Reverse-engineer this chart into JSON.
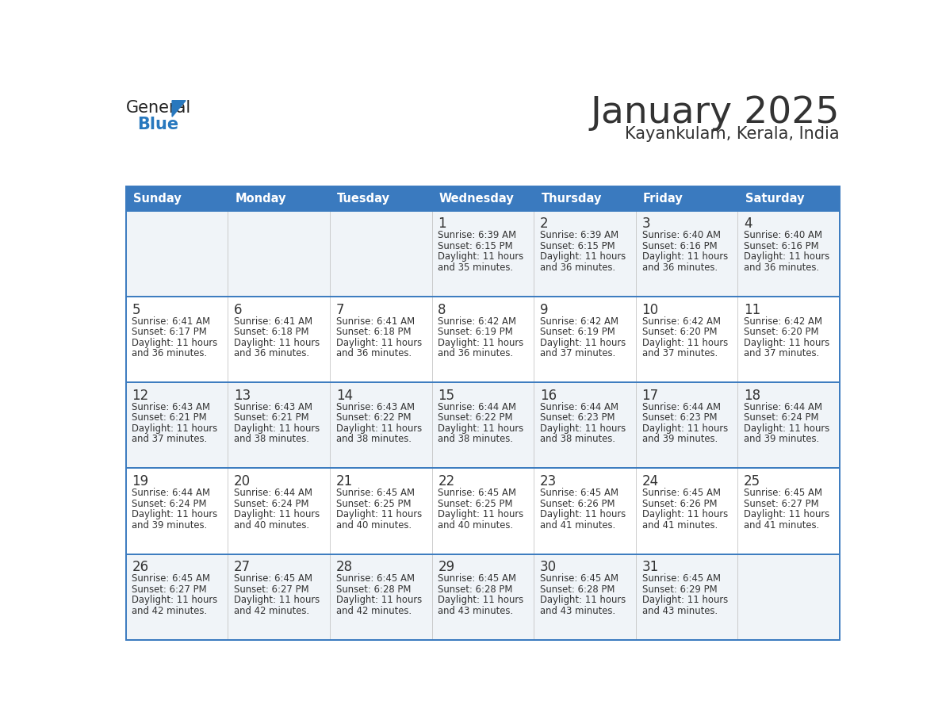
{
  "title": "January 2025",
  "subtitle": "Kayankulam, Kerala, India",
  "days_of_week": [
    "Sunday",
    "Monday",
    "Tuesday",
    "Wednesday",
    "Thursday",
    "Friday",
    "Saturday"
  ],
  "header_bg": "#3a7abf",
  "header_text_color": "#ffffff",
  "cell_bg_odd": "#f0f4f8",
  "cell_bg_even": "#ffffff",
  "row_line_color": "#3a7abf",
  "text_color": "#333333",
  "calendar_data": [
    [
      null,
      null,
      null,
      {
        "day": 1,
        "sunrise": "6:39 AM",
        "sunset": "6:15 PM",
        "daylight": "11 hours",
        "daylight2": "and 35 minutes."
      },
      {
        "day": 2,
        "sunrise": "6:39 AM",
        "sunset": "6:15 PM",
        "daylight": "11 hours",
        "daylight2": "and 36 minutes."
      },
      {
        "day": 3,
        "sunrise": "6:40 AM",
        "sunset": "6:16 PM",
        "daylight": "11 hours",
        "daylight2": "and 36 minutes."
      },
      {
        "day": 4,
        "sunrise": "6:40 AM",
        "sunset": "6:16 PM",
        "daylight": "11 hours",
        "daylight2": "and 36 minutes."
      }
    ],
    [
      {
        "day": 5,
        "sunrise": "6:41 AM",
        "sunset": "6:17 PM",
        "daylight": "11 hours",
        "daylight2": "and 36 minutes."
      },
      {
        "day": 6,
        "sunrise": "6:41 AM",
        "sunset": "6:18 PM",
        "daylight": "11 hours",
        "daylight2": "and 36 minutes."
      },
      {
        "day": 7,
        "sunrise": "6:41 AM",
        "sunset": "6:18 PM",
        "daylight": "11 hours",
        "daylight2": "and 36 minutes."
      },
      {
        "day": 8,
        "sunrise": "6:42 AM",
        "sunset": "6:19 PM",
        "daylight": "11 hours",
        "daylight2": "and 36 minutes."
      },
      {
        "day": 9,
        "sunrise": "6:42 AM",
        "sunset": "6:19 PM",
        "daylight": "11 hours",
        "daylight2": "and 37 minutes."
      },
      {
        "day": 10,
        "sunrise": "6:42 AM",
        "sunset": "6:20 PM",
        "daylight": "11 hours",
        "daylight2": "and 37 minutes."
      },
      {
        "day": 11,
        "sunrise": "6:42 AM",
        "sunset": "6:20 PM",
        "daylight": "11 hours",
        "daylight2": "and 37 minutes."
      }
    ],
    [
      {
        "day": 12,
        "sunrise": "6:43 AM",
        "sunset": "6:21 PM",
        "daylight": "11 hours",
        "daylight2": "and 37 minutes."
      },
      {
        "day": 13,
        "sunrise": "6:43 AM",
        "sunset": "6:21 PM",
        "daylight": "11 hours",
        "daylight2": "and 38 minutes."
      },
      {
        "day": 14,
        "sunrise": "6:43 AM",
        "sunset": "6:22 PM",
        "daylight": "11 hours",
        "daylight2": "and 38 minutes."
      },
      {
        "day": 15,
        "sunrise": "6:44 AM",
        "sunset": "6:22 PM",
        "daylight": "11 hours",
        "daylight2": "and 38 minutes."
      },
      {
        "day": 16,
        "sunrise": "6:44 AM",
        "sunset": "6:23 PM",
        "daylight": "11 hours",
        "daylight2": "and 38 minutes."
      },
      {
        "day": 17,
        "sunrise": "6:44 AM",
        "sunset": "6:23 PM",
        "daylight": "11 hours",
        "daylight2": "and 39 minutes."
      },
      {
        "day": 18,
        "sunrise": "6:44 AM",
        "sunset": "6:24 PM",
        "daylight": "11 hours",
        "daylight2": "and 39 minutes."
      }
    ],
    [
      {
        "day": 19,
        "sunrise": "6:44 AM",
        "sunset": "6:24 PM",
        "daylight": "11 hours",
        "daylight2": "and 39 minutes."
      },
      {
        "day": 20,
        "sunrise": "6:44 AM",
        "sunset": "6:24 PM",
        "daylight": "11 hours",
        "daylight2": "and 40 minutes."
      },
      {
        "day": 21,
        "sunrise": "6:45 AM",
        "sunset": "6:25 PM",
        "daylight": "11 hours",
        "daylight2": "and 40 minutes."
      },
      {
        "day": 22,
        "sunrise": "6:45 AM",
        "sunset": "6:25 PM",
        "daylight": "11 hours",
        "daylight2": "and 40 minutes."
      },
      {
        "day": 23,
        "sunrise": "6:45 AM",
        "sunset": "6:26 PM",
        "daylight": "11 hours",
        "daylight2": "and 41 minutes."
      },
      {
        "day": 24,
        "sunrise": "6:45 AM",
        "sunset": "6:26 PM",
        "daylight": "11 hours",
        "daylight2": "and 41 minutes."
      },
      {
        "day": 25,
        "sunrise": "6:45 AM",
        "sunset": "6:27 PM",
        "daylight": "11 hours",
        "daylight2": "and 41 minutes."
      }
    ],
    [
      {
        "day": 26,
        "sunrise": "6:45 AM",
        "sunset": "6:27 PM",
        "daylight": "11 hours",
        "daylight2": "and 42 minutes."
      },
      {
        "day": 27,
        "sunrise": "6:45 AM",
        "sunset": "6:27 PM",
        "daylight": "11 hours",
        "daylight2": "and 42 minutes."
      },
      {
        "day": 28,
        "sunrise": "6:45 AM",
        "sunset": "6:28 PM",
        "daylight": "11 hours",
        "daylight2": "and 42 minutes."
      },
      {
        "day": 29,
        "sunrise": "6:45 AM",
        "sunset": "6:28 PM",
        "daylight": "11 hours",
        "daylight2": "and 43 minutes."
      },
      {
        "day": 30,
        "sunrise": "6:45 AM",
        "sunset": "6:28 PM",
        "daylight": "11 hours",
        "daylight2": "and 43 minutes."
      },
      {
        "day": 31,
        "sunrise": "6:45 AM",
        "sunset": "6:29 PM",
        "daylight": "11 hours",
        "daylight2": "and 43 minutes."
      },
      null
    ]
  ],
  "logo_general_color": "#222222",
  "logo_blue_color": "#2878be",
  "logo_triangle_color": "#2878be"
}
